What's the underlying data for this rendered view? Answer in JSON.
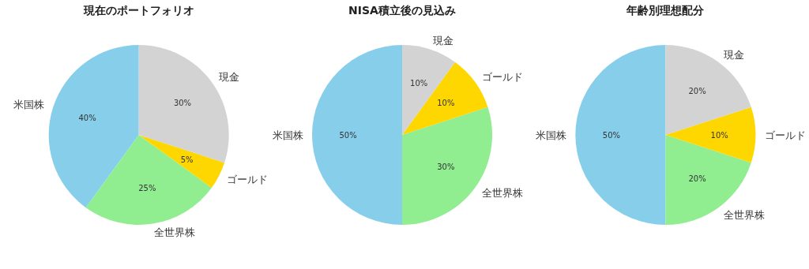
{
  "chart_data": [
    {
      "type": "pie",
      "title": "現在のポートフォリオ",
      "categories": [
        "米国株",
        "全世界株",
        "ゴールド",
        "現金"
      ],
      "values": [
        40,
        25,
        5,
        30
      ],
      "colors": [
        "#87ceeb",
        "#90ee90",
        "#ffd700",
        "#d3d3d3"
      ],
      "value_labels": [
        "40%",
        "25%",
        "5%",
        "30%"
      ]
    },
    {
      "type": "pie",
      "title": "NISA積立後の見込み",
      "categories": [
        "米国株",
        "全世界株",
        "ゴールド",
        "現金"
      ],
      "values": [
        50,
        30,
        10,
        10
      ],
      "colors": [
        "#87ceeb",
        "#90ee90",
        "#ffd700",
        "#d3d3d3"
      ],
      "value_labels": [
        "50%",
        "30%",
        "10%",
        "10%"
      ]
    },
    {
      "type": "pie",
      "title": "年齢別理想配分",
      "categories": [
        "米国株",
        "全世界株",
        "ゴールド",
        "現金"
      ],
      "values": [
        50,
        20,
        10,
        20
      ],
      "colors": [
        "#87ceeb",
        "#90ee90",
        "#ffd700",
        "#d3d3d3"
      ],
      "value_labels": [
        "50%",
        "20%",
        "10%",
        "20%"
      ]
    }
  ]
}
